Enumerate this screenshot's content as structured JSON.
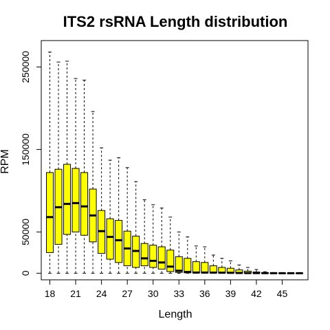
{
  "chart_data": {
    "type": "boxplot",
    "title": "ITS2 rsRNA Length distribution",
    "xlabel": "Length",
    "ylabel": "RPM",
    "xlim": [
      17.0,
      48.0
    ],
    "ylim": [
      -8000,
      282000
    ],
    "x_ticks": [
      18,
      21,
      24,
      27,
      30,
      33,
      36,
      39,
      42,
      45
    ],
    "y_ticks": [
      0,
      50000,
      150000,
      250000
    ],
    "box_fill": "#ffff00",
    "box_stroke": "#000000",
    "boxes": [
      {
        "x": 18,
        "min": 0,
        "q1": 25000,
        "median": 68000,
        "q3": 122000,
        "max": 268000
      },
      {
        "x": 19,
        "min": 0,
        "q1": 35000,
        "median": 80000,
        "q3": 126000,
        "max": 256000
      },
      {
        "x": 20,
        "min": 0,
        "q1": 47000,
        "median": 84000,
        "q3": 132000,
        "max": 257000
      },
      {
        "x": 21,
        "min": 0,
        "q1": 50000,
        "median": 85000,
        "q3": 127000,
        "max": 236000
      },
      {
        "x": 22,
        "min": 0,
        "q1": 46000,
        "median": 81000,
        "q3": 122000,
        "max": 234000
      },
      {
        "x": 23,
        "min": 0,
        "q1": 38000,
        "median": 70000,
        "q3": 102000,
        "max": 196000
      },
      {
        "x": 24,
        "min": 0,
        "q1": 24000,
        "median": 51000,
        "q3": 76000,
        "max": 152000
      },
      {
        "x": 25,
        "min": 0,
        "q1": 17000,
        "median": 44000,
        "q3": 66000,
        "max": 137000
      },
      {
        "x": 26,
        "min": 0,
        "q1": 13000,
        "median": 40000,
        "q3": 64000,
        "max": 140000
      },
      {
        "x": 27,
        "min": 0,
        "q1": 9000,
        "median": 30000,
        "q3": 51000,
        "max": 128000
      },
      {
        "x": 28,
        "min": 0,
        "q1": 7000,
        "median": 27000,
        "q3": 45000,
        "max": 111000
      },
      {
        "x": 29,
        "min": 0,
        "q1": 9000,
        "median": 18000,
        "q3": 36000,
        "max": 89000
      },
      {
        "x": 30,
        "min": 0,
        "q1": 7000,
        "median": 15000,
        "q3": 34000,
        "max": 83000
      },
      {
        "x": 31,
        "min": 0,
        "q1": 5000,
        "median": 13000,
        "q3": 32000,
        "max": 79000
      },
      {
        "x": 32,
        "min": 0,
        "q1": 2000,
        "median": 8000,
        "q3": 28000,
        "max": 68000
      },
      {
        "x": 33,
        "min": 0,
        "q1": 1000,
        "median": 3000,
        "q3": 20000,
        "max": 50000
      },
      {
        "x": 34,
        "min": 0,
        "q1": 500,
        "median": 1500,
        "q3": 18000,
        "max": 44000
      },
      {
        "x": 35,
        "min": 0,
        "q1": 300,
        "median": 800,
        "q3": 14000,
        "max": 33000
      },
      {
        "x": 36,
        "min": 0,
        "q1": 300,
        "median": 800,
        "q3": 13000,
        "max": 32000
      },
      {
        "x": 37,
        "min": 0,
        "q1": 300,
        "median": 700,
        "q3": 9000,
        "max": 22000
      },
      {
        "x": 38,
        "min": 0,
        "q1": 300,
        "median": 600,
        "q3": 7000,
        "max": 18000
      },
      {
        "x": 39,
        "min": 0,
        "q1": 200,
        "median": 500,
        "q3": 6000,
        "max": 15000
      },
      {
        "x": 40,
        "min": 0,
        "q1": 100,
        "median": 300,
        "q3": 4000,
        "max": 10000
      },
      {
        "x": 41,
        "min": 0,
        "q1": 100,
        "median": 200,
        "q3": 2500,
        "max": 7000
      },
      {
        "x": 42,
        "min": 0,
        "q1": 50,
        "median": 150,
        "q3": 1500,
        "max": 4500
      },
      {
        "x": 43,
        "min": 0,
        "q1": 0,
        "median": 100,
        "q3": 700,
        "max": 1800
      },
      {
        "x": 44,
        "min": 0,
        "q1": 0,
        "median": 50,
        "q3": 300,
        "max": 800
      },
      {
        "x": 45,
        "min": 0,
        "q1": 0,
        "median": 20,
        "q3": 150,
        "max": 400
      },
      {
        "x": 46,
        "min": 0,
        "q1": 0,
        "median": 10,
        "q3": 100,
        "max": 250
      },
      {
        "x": 47,
        "min": 0,
        "q1": 0,
        "median": 5,
        "q3": 60,
        "max": 150
      }
    ]
  }
}
